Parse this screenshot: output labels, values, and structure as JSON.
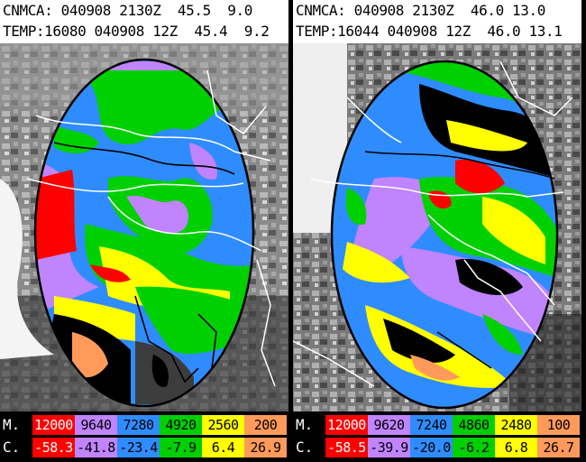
{
  "left_panel": {
    "header_line1": "CNMCA: 040908 2130Z  45.5  9.0",
    "header_line2": "TEMP:16080 040908 12Z  45.4  9.2",
    "legend": {
      "m_label": "M.",
      "c_label": "C.",
      "m_values": [
        "12000",
        "9640",
        "7280",
        "4920",
        "2560",
        "200"
      ],
      "c_values": [
        "-58.3",
        "-41.8",
        "-23.4",
        "-7.9",
        "6.4",
        "26.9"
      ]
    }
  },
  "right_panel": {
    "header_line1": "CNMCA: 040908 2130Z  46.0 13.0",
    "header_line2": "TEMP:16044 040908 12Z  46.0 13.1",
    "legend": {
      "m_label": "M.",
      "c_label": "C.",
      "m_values": [
        "12000",
        "9620",
        "7240",
        "4860",
        "2480",
        "100"
      ],
      "c_values": [
        "-58.5",
        "-39.9",
        "-20.0",
        "-6.2",
        "6.8",
        "26.7"
      ]
    }
  },
  "legend_colors": {
    "m_backgrounds": [
      "#ff0000",
      "#c084ff",
      "#2f8cff",
      "#00d000",
      "#ffff00",
      "#ff9a5a"
    ],
    "c_backgrounds": [
      "#ff0000",
      "#c084ff",
      "#2f8cff",
      "#00d000",
      "#ffff00",
      "#ff9a5a"
    ],
    "m_first_text": "#ffffff",
    "c_first_text": "#ffffff"
  }
}
